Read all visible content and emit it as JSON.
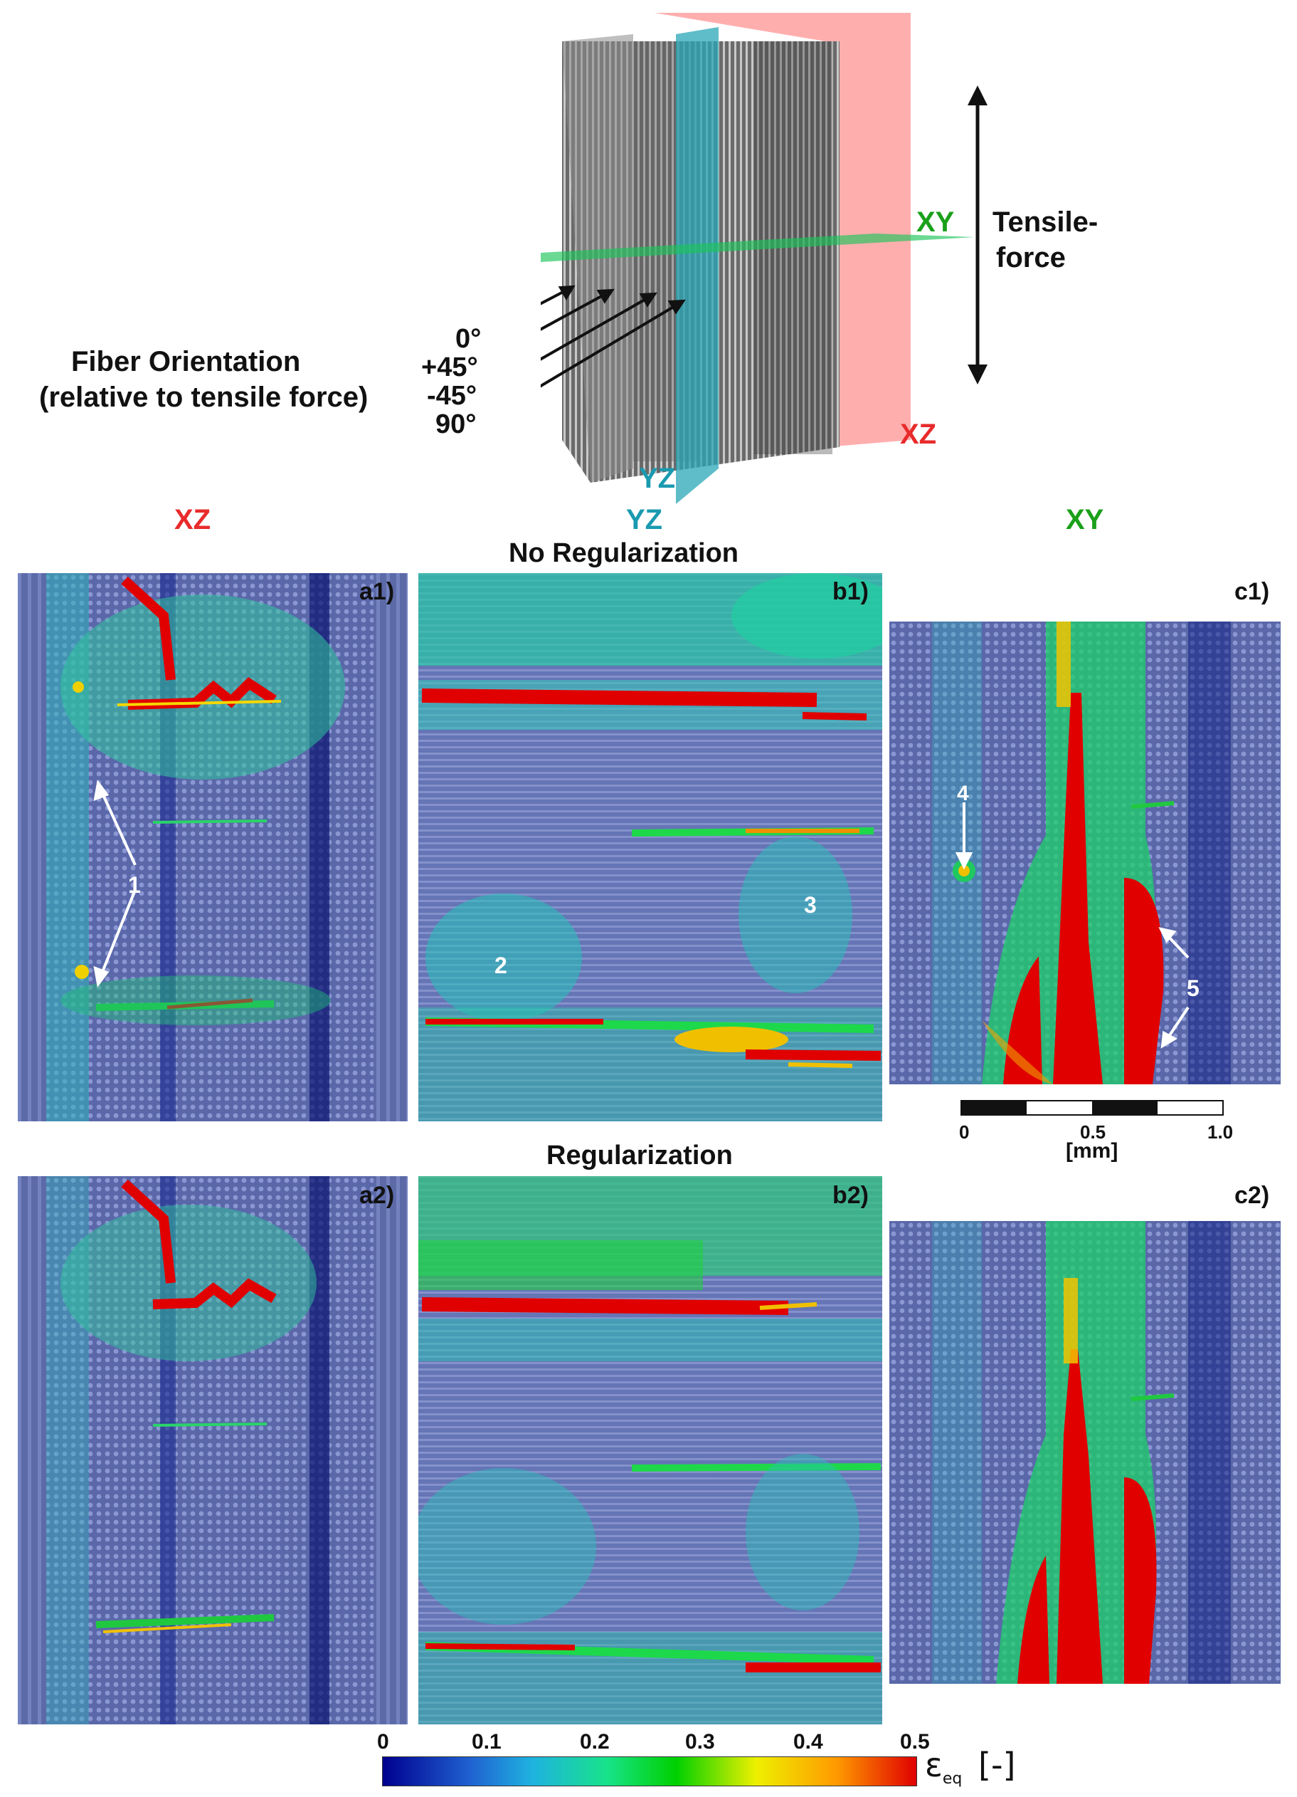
{
  "figure": {
    "fiber_orientation": {
      "title_line1": "Fiber Orientation",
      "title_line2": "(relative to tensile force)",
      "angles": [
        "0°",
        "+45°",
        "-45°",
        "90°"
      ]
    },
    "tensile_force": {
      "line1": "Tensile-",
      "line2": "force"
    },
    "planes": {
      "xy": "XY",
      "xz": "XZ",
      "yz": "YZ"
    },
    "column_headers": [
      "XZ",
      "YZ",
      "XY"
    ],
    "row_titles": {
      "top": "No Regularization",
      "bottom": "Regularization"
    },
    "panel_tags": [
      "a1)",
      "b1)",
      "c1)",
      "a2)",
      "b2)",
      "c2)"
    ],
    "annotations": [
      "1",
      "2",
      "3",
      "4",
      "5"
    ],
    "scale_bar": {
      "ticks": [
        "0",
        "0.5",
        "1.0"
      ],
      "unit": "[mm]"
    },
    "colorbar": {
      "ticks": [
        "0",
        "0.1",
        "0.2",
        "0.3",
        "0.4",
        "0.5"
      ],
      "symbol": "ε",
      "subscript": "eq",
      "unit": "[-]",
      "colors": [
        "#00008f",
        "#1fb2e0",
        "#17e38a",
        "#00d000",
        "#eef000",
        "#ff9a00",
        "#e00000"
      ]
    },
    "colors": {
      "xz": "#e82b2b",
      "yz": "#1a9ab0",
      "xy": "#1aa01a"
    }
  }
}
